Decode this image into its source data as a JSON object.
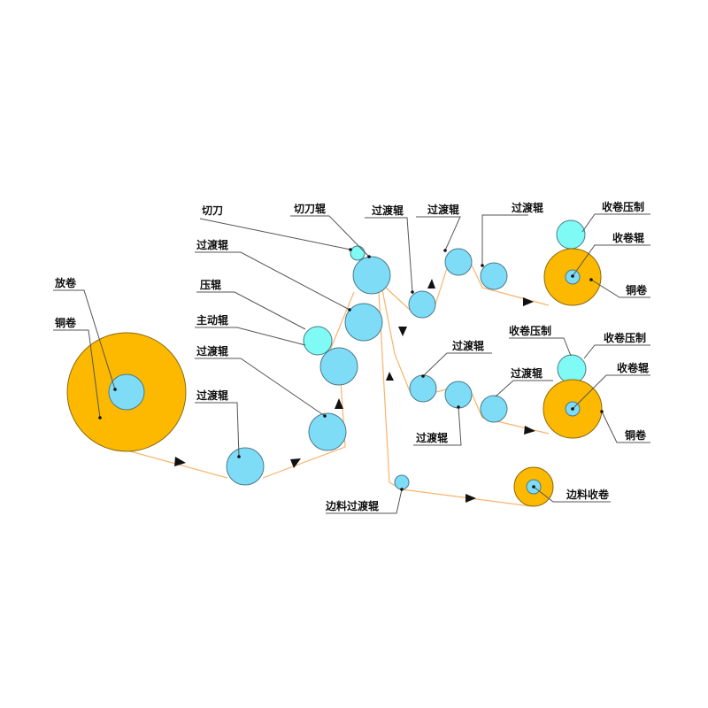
{
  "colors": {
    "coil": "#fcb900",
    "roller": "#7fdcf7",
    "press_roller": "#7ffaf4",
    "web": "#f9b46b",
    "leader": "#555555"
  },
  "labels": {
    "unwind": "放卷",
    "unwind_coil": "铜卷",
    "transfer_1": "过渡辊",
    "transfer_2": "过渡辊",
    "drive_roller": "主动辊",
    "press_roller": "压辊",
    "transfer_3": "过渡辊",
    "cutter": "切刀",
    "cutter_roller": "切刀辊",
    "transfer_4": "过渡辊",
    "transfer_5": "过渡辊",
    "transfer_6": "过渡辊",
    "rewind_press_1": "收卷压制",
    "rewind_roller_1": "收卷辊",
    "rewind_coil_1": "铜卷",
    "transfer_7": "过渡辊",
    "rewind_press_2a": "收卷压制",
    "rewind_press_2b": "收卷压制",
    "rewind_roller_2": "收卷辊",
    "transfer_8": "过渡辊",
    "transfer_9": "过渡辊",
    "rewind_coil_2": "铜卷",
    "edge_transfer": "边料过渡辊",
    "edge_rewind": "边料收卷"
  }
}
